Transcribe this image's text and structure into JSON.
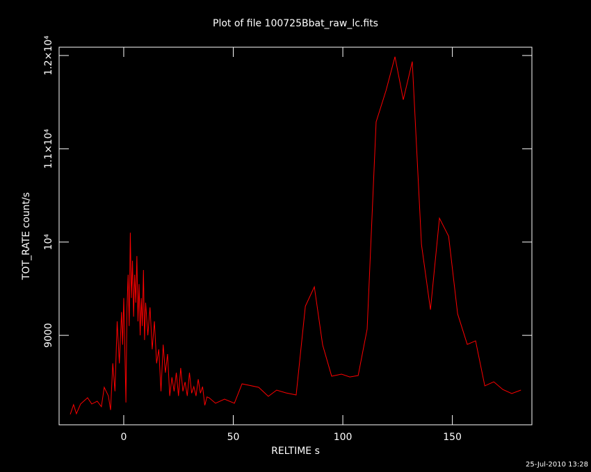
{
  "chart_data": {
    "type": "line",
    "title": "Plot of file 100725Bbat_raw_lc.fits",
    "x_label": "RELTIME  s",
    "y_label": "TOT_RATE  count/s",
    "timestamp": "25-Jul-2010 13:28",
    "color": "#ff0000",
    "xlim": [
      -29.5,
      186.3
    ],
    "ylim": [
      8041,
      12089
    ],
    "xticks": [
      0,
      50,
      100,
      150
    ],
    "yticks": [
      9000,
      {
        "value": 10000,
        "label": "10⁴"
      },
      {
        "value": 11000,
        "label": "1.1×10⁴"
      },
      {
        "value": 12000,
        "label": "1.2×10⁴"
      }
    ],
    "x": [
      -24.4,
      -22.9,
      -21.6,
      -19.7,
      -16.5,
      -14.6,
      -12.1,
      -10.2,
      -8.9,
      -7,
      -6,
      -5,
      -4,
      -3,
      -2,
      -1,
      -0.5,
      0,
      0.5,
      1,
      1.5,
      2,
      2.5,
      3,
      3.5,
      4,
      4.5,
      5,
      5.5,
      6,
      6.5,
      7,
      7.5,
      8,
      8.5,
      9,
      9.5,
      10,
      11,
      12,
      13,
      14,
      15,
      16,
      17,
      18,
      19,
      20,
      21,
      22,
      23,
      24,
      25,
      26,
      27,
      28,
      29,
      30,
      31,
      32,
      33,
      34,
      35,
      36,
      37,
      38,
      39,
      41.9,
      46.0,
      50.5,
      54.0,
      61.6,
      66.0,
      69.8,
      74.0,
      78.7,
      82.9,
      87.0,
      90.8,
      94.9,
      99.4,
      103.2,
      107.0,
      111.1,
      115.2,
      119.7,
      123.8,
      127.6,
      131.7,
      135.9,
      140.0,
      144.1,
      148.3,
      152.4,
      156.8,
      160.6,
      164.8,
      168.9,
      173.0,
      177.1,
      181.3
    ],
    "values": [
      8153,
      8257,
      8160,
      8264,
      8331,
      8264,
      8294,
      8235,
      8443,
      8350,
      8200,
      8700,
      8400,
      9150,
      8700,
      9250,
      8900,
      9400,
      8850,
      8280,
      9300,
      9650,
      9100,
      10100,
      9400,
      9800,
      9200,
      9650,
      9350,
      9850,
      9150,
      9550,
      9000,
      9400,
      9100,
      9700,
      8950,
      9350,
      9000,
      9300,
      8850,
      9150,
      8700,
      8850,
      8400,
      8900,
      8600,
      8800,
      8350,
      8550,
      8400,
      8600,
      8350,
      8650,
      8400,
      8500,
      8350,
      8600,
      8380,
      8450,
      8350,
      8530,
      8380,
      8450,
      8250,
      8340,
      8330,
      8272,
      8316,
      8272,
      8480,
      8443,
      8346,
      8413,
      8383,
      8361,
      9312,
      9520,
      8896,
      8562,
      8584,
      8554,
      8569,
      9067,
      11288,
      11623,
      11987,
      11526,
      11935,
      9973,
      9275,
      10256,
      10062,
      9230,
      8903,
      8941,
      8458,
      8502,
      8420,
      8376,
      8413
    ]
  }
}
